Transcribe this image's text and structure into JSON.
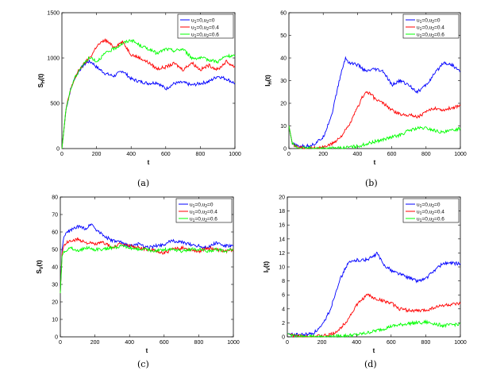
{
  "colors": {
    "blue": "#0000ff",
    "red": "#ff0000",
    "green": "#00ff00"
  },
  "chart_data": [
    {
      "type": "line",
      "caption": "(a)",
      "xlabel": "t",
      "ylabel": "S_H(t)",
      "ylabel_main": "S",
      "ylabel_sub": "H",
      "ylabel_tail": "(t)",
      "xlim": [
        0,
        1000
      ],
      "ylim": [
        0,
        1500
      ],
      "xticks": [
        "0",
        "200",
        "400",
        "600",
        "800",
        "1000"
      ],
      "yticks": [
        "0",
        "500",
        "1000",
        "1500"
      ],
      "legend_position": "top-right",
      "series": [
        {
          "name": "u1=0,u2=0",
          "color": "#0000ff",
          "x": [
            0,
            25,
            50,
            75,
            100,
            125,
            150,
            175,
            200,
            250,
            300,
            350,
            400,
            450,
            500,
            550,
            600,
            650,
            700,
            750,
            800,
            850,
            900,
            950,
            1000
          ],
          "y": [
            0,
            450,
            650,
            780,
            860,
            920,
            960,
            950,
            900,
            830,
            800,
            860,
            770,
            740,
            720,
            730,
            660,
            720,
            730,
            700,
            720,
            740,
            800,
            770,
            720
          ]
        },
        {
          "name": "u1=0,u2=0.4",
          "color": "#ff0000",
          "x": [
            0,
            25,
            50,
            75,
            100,
            125,
            150,
            175,
            200,
            250,
            300,
            350,
            400,
            450,
            500,
            550,
            600,
            650,
            700,
            750,
            800,
            850,
            900,
            950,
            1000
          ],
          "y": [
            0,
            450,
            650,
            780,
            870,
            930,
            980,
            1040,
            1130,
            1200,
            1120,
            1180,
            1040,
            1000,
            950,
            880,
            900,
            940,
            870,
            950,
            870,
            920,
            870,
            960,
            900
          ]
        },
        {
          "name": "u1=0,u2=0.6",
          "color": "#00ff00",
          "x": [
            0,
            25,
            50,
            75,
            100,
            125,
            150,
            175,
            200,
            250,
            300,
            350,
            400,
            450,
            500,
            550,
            600,
            650,
            700,
            750,
            800,
            850,
            900,
            950,
            1000
          ],
          "y": [
            0,
            450,
            650,
            780,
            870,
            930,
            990,
            1000,
            960,
            1050,
            1100,
            1160,
            1200,
            1140,
            1100,
            1050,
            1100,
            1080,
            1100,
            1000,
            1000,
            980,
            960,
            1020,
            1020
          ]
        }
      ]
    },
    {
      "type": "line",
      "caption": "(b)",
      "xlabel": "t",
      "ylabel": "I_H(t)",
      "ylabel_main": "I",
      "ylabel_sub": "H",
      "ylabel_tail": "(t)",
      "xlim": [
        0,
        1000
      ],
      "ylim": [
        0,
        60
      ],
      "xticks": [
        "0",
        "200",
        "400",
        "600",
        "800",
        "1000"
      ],
      "yticks": [
        "0",
        "10",
        "20",
        "30",
        "40",
        "50",
        "60"
      ],
      "legend_position": "top-right",
      "series": [
        {
          "name": "u1=0,u2=0",
          "color": "#0000ff",
          "x": [
            0,
            20,
            50,
            100,
            150,
            200,
            250,
            300,
            330,
            350,
            400,
            450,
            500,
            550,
            600,
            650,
            700,
            750,
            800,
            850,
            900,
            950,
            1000
          ],
          "y": [
            10,
            2,
            1,
            1,
            2,
            5,
            15,
            32,
            40,
            38,
            37,
            34,
            35,
            34,
            28,
            30,
            28,
            25,
            28,
            33,
            38,
            37,
            34
          ]
        },
        {
          "name": "u1=0,u2=0.4",
          "color": "#ff0000",
          "x": [
            0,
            20,
            50,
            100,
            150,
            200,
            250,
            300,
            350,
            400,
            430,
            450,
            480,
            500,
            550,
            600,
            650,
            700,
            750,
            800,
            850,
            900,
            950,
            1000
          ],
          "y": [
            10,
            2,
            0.5,
            0.3,
            0.3,
            0.5,
            2,
            5,
            10,
            18,
            23,
            25,
            24,
            22,
            20,
            17,
            15,
            15,
            14,
            16,
            18,
            17,
            18,
            19
          ]
        },
        {
          "name": "u1=0,u2=0.6",
          "color": "#00ff00",
          "x": [
            0,
            20,
            50,
            100,
            200,
            300,
            400,
            450,
            500,
            550,
            600,
            650,
            700,
            750,
            800,
            850,
            900,
            950,
            1000
          ],
          "y": [
            10,
            2,
            0.3,
            0.1,
            0.1,
            0.2,
            1,
            2,
            3,
            4,
            5,
            6,
            8,
            9,
            9,
            8,
            7,
            8,
            9
          ]
        }
      ]
    },
    {
      "type": "line",
      "caption": "(c)",
      "xlabel": "t",
      "ylabel": "S_V(t)",
      "ylabel_main": "S",
      "ylabel_sub": "V",
      "ylabel_tail": "(t)",
      "xlim": [
        0,
        1000
      ],
      "ylim": [
        0,
        80
      ],
      "xticks": [
        "0",
        "200",
        "400",
        "600",
        "800",
        "1000"
      ],
      "yticks": [
        "0",
        "10",
        "20",
        "30",
        "40",
        "50",
        "60",
        "70",
        "80"
      ],
      "legend_position": "top-right",
      "series": [
        {
          "name": "u1=0,u2=0",
          "color": "#0000ff",
          "x": [
            0,
            10,
            20,
            40,
            60,
            80,
            100,
            150,
            180,
            200,
            250,
            300,
            350,
            400,
            450,
            500,
            550,
            600,
            650,
            700,
            750,
            800,
            850,
            900,
            950,
            1000
          ],
          "y": [
            25,
            50,
            57,
            60,
            61,
            62,
            63,
            62,
            65,
            62,
            58,
            55,
            54,
            52,
            53,
            51,
            52,
            53,
            55,
            54,
            53,
            52,
            51,
            54,
            52,
            52
          ]
        },
        {
          "name": "u1=0,u2=0.4",
          "color": "#ff0000",
          "x": [
            0,
            10,
            20,
            40,
            60,
            80,
            100,
            150,
            200,
            250,
            300,
            350,
            400,
            450,
            500,
            550,
            600,
            650,
            700,
            750,
            800,
            850,
            900,
            950,
            1000
          ],
          "y": [
            25,
            48,
            52,
            54,
            55,
            55,
            56,
            54,
            53,
            54,
            51,
            53,
            52,
            51,
            50,
            49,
            48,
            50,
            51,
            50,
            49,
            51,
            50,
            49,
            50
          ]
        },
        {
          "name": "u1=0,u2=0.6",
          "color": "#00ff00",
          "x": [
            0,
            10,
            20,
            40,
            60,
            80,
            100,
            150,
            200,
            250,
            300,
            350,
            400,
            450,
            500,
            550,
            600,
            650,
            700,
            750,
            800,
            850,
            900,
            950,
            1000
          ],
          "y": [
            25,
            46,
            49,
            50,
            51,
            50,
            49,
            51,
            50,
            50,
            51,
            52,
            51,
            50,
            50,
            49,
            50,
            50,
            49,
            50,
            50,
            49,
            50,
            49,
            50
          ]
        }
      ]
    },
    {
      "type": "line",
      "caption": "(d)",
      "xlabel": "t",
      "ylabel": "I_V(t)",
      "ylabel_main": "I",
      "ylabel_sub": "V",
      "ylabel_tail": "(t)",
      "xlim": [
        0,
        1000
      ],
      "ylim": [
        0,
        20
      ],
      "xticks": [
        "0",
        "200",
        "400",
        "600",
        "800",
        "1000"
      ],
      "yticks": [
        "0",
        "2",
        "4",
        "6",
        "8",
        "10",
        "12",
        "14",
        "16",
        "18",
        "20"
      ],
      "legend_position": "top-right",
      "series": [
        {
          "name": "u1=0,u2=0",
          "color": "#0000ff",
          "x": [
            0,
            20,
            50,
            100,
            150,
            200,
            250,
            300,
            350,
            400,
            450,
            500,
            520,
            550,
            600,
            650,
            700,
            750,
            800,
            850,
            900,
            950,
            1000
          ],
          "y": [
            0.5,
            0.4,
            0.3,
            0.3,
            0.5,
            1.5,
            4,
            8,
            10.5,
            11,
            11,
            11.5,
            12,
            10.5,
            9.5,
            9,
            8.5,
            8,
            8.3,
            9.5,
            10.5,
            10.5,
            10.5
          ]
        },
        {
          "name": "u1=0,u2=0.4",
          "color": "#ff0000",
          "x": [
            0,
            20,
            50,
            100,
            200,
            250,
            300,
            350,
            400,
            450,
            470,
            500,
            550,
            600,
            650,
            700,
            750,
            800,
            850,
            900,
            950,
            1000
          ],
          "y": [
            0.5,
            0.3,
            0.1,
            0.05,
            0.1,
            0.3,
            1,
            2.5,
            4.5,
            5.8,
            6,
            5.5,
            5.2,
            4.8,
            4,
            3.8,
            3.7,
            3.8,
            4.2,
            4.5,
            4.6,
            4.7
          ]
        },
        {
          "name": "u1=0,u2=0.6",
          "color": "#00ff00",
          "x": [
            0,
            20,
            50,
            100,
            200,
            300,
            400,
            450,
            500,
            550,
            600,
            650,
            700,
            750,
            800,
            850,
            900,
            950,
            1000
          ],
          "y": [
            0.5,
            0.3,
            0.1,
            0.05,
            0.05,
            0.1,
            0.3,
            0.5,
            0.8,
            1.1,
            1.5,
            1.7,
            1.9,
            2,
            2.1,
            1.9,
            1.6,
            1.7,
            1.9
          ]
        }
      ]
    }
  ]
}
